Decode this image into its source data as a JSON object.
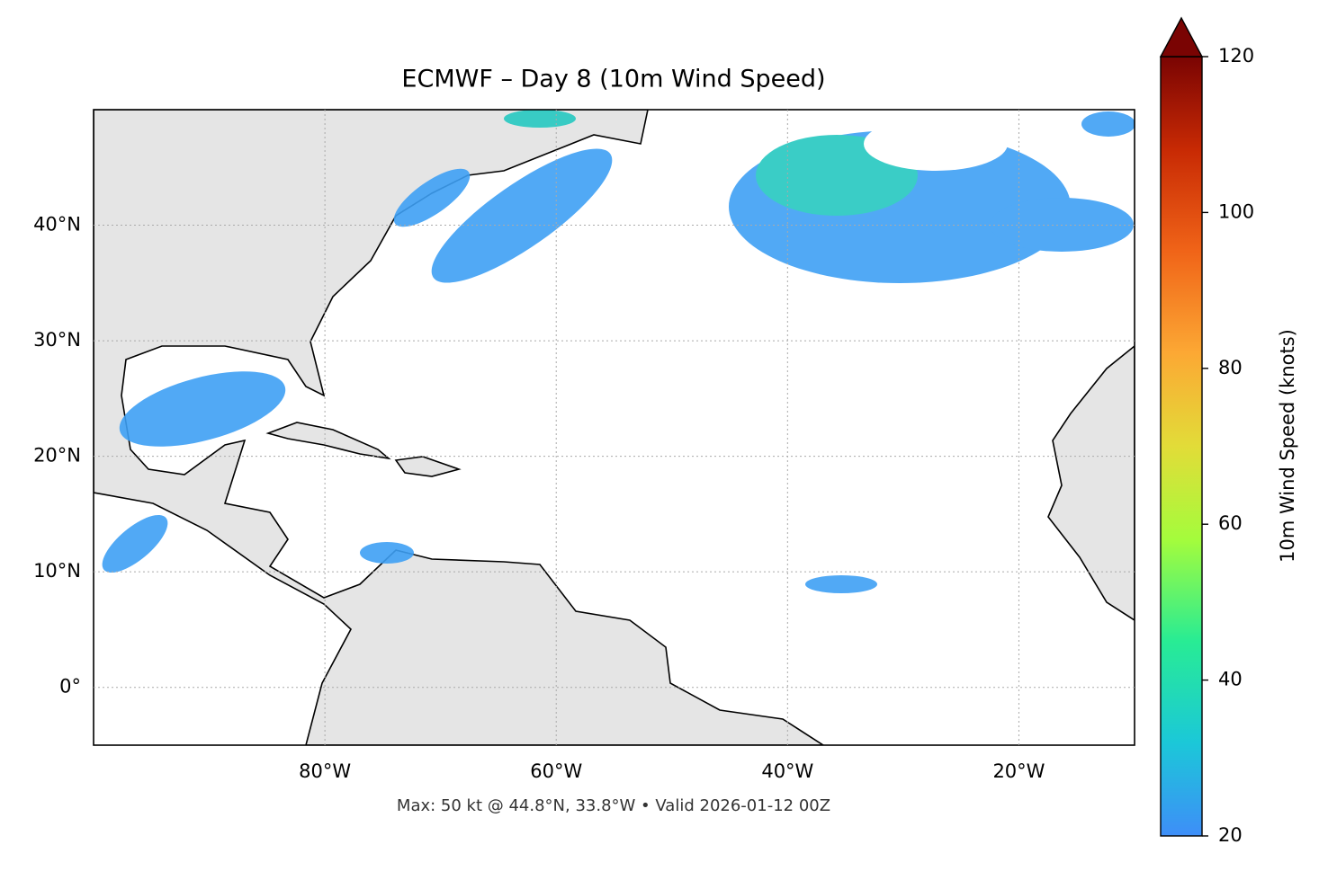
{
  "title": "ECMWF – Day 8 (10m Wind Speed)",
  "footer": "Max: 50 kt @ 44.8°N, 33.8°W • Valid 2026-01-12 00Z",
  "map": {
    "xlim": [
      -100,
      -10
    ],
    "ylim": [
      -5,
      50
    ],
    "xticks": [
      {
        "value": -80,
        "label": "80°W"
      },
      {
        "value": -60,
        "label": "60°W"
      },
      {
        "value": -40,
        "label": "40°W"
      },
      {
        "value": -20,
        "label": "20°W"
      }
    ],
    "yticks": [
      {
        "value": 0,
        "label": "0°"
      },
      {
        "value": 10,
        "label": "10°N"
      },
      {
        "value": 20,
        "label": "20°N"
      },
      {
        "value": 30,
        "label": "30°N"
      },
      {
        "value": 40,
        "label": "40°N"
      }
    ],
    "grid": true
  },
  "colorbar": {
    "label": "10m Wind Speed (knots)",
    "lim": [
      20,
      120
    ],
    "ticks": [
      20,
      40,
      60,
      80,
      100,
      120
    ]
  }
}
